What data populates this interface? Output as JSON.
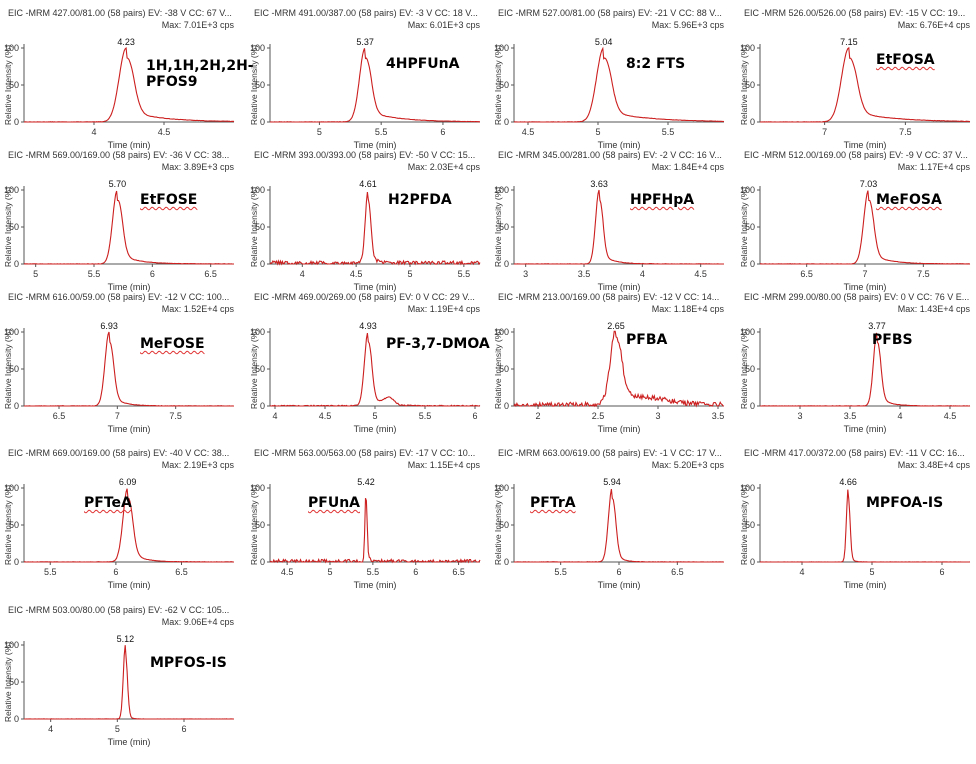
{
  "colors": {
    "trace": "#cc1f1f",
    "axis": "#555555",
    "text": "#333333"
  },
  "chart_data": [
    {
      "type": "line",
      "header": "EIC -MRM 427.00/81.00 (58 pairs) EV: -38 V CC: 67 V...",
      "max": "Max: 7.01E+3 cps",
      "compound": "1H,1H,2H,2H-\nPFOS9",
      "squiggle": false,
      "xlabel": "Time (min)",
      "ylabel": "Relative Intensity (%)",
      "xlim": [
        3.5,
        5.0
      ],
      "xticks": [
        "4",
        "4.5"
      ],
      "ylim": [
        0,
        100
      ],
      "yticks": [
        "0",
        "50",
        "100"
      ],
      "peak": 4.23,
      "peak_label": "4.23",
      "width": 0.05,
      "tail": 0.25,
      "noise": 0.5,
      "extra": []
    },
    {
      "type": "line",
      "header": "EIC -MRM 491.00/387.00 (58 pairs) EV: -3 V CC: 18 V...",
      "max": "Max: 6.01E+3 cps",
      "compound": "4HPFUnA",
      "squiggle": false,
      "xlabel": "Time (min)",
      "ylabel": "Relative Intensity (%)",
      "xlim": [
        4.6,
        6.3
      ],
      "xticks": [
        "5",
        "5.5",
        "6"
      ],
      "ylim": [
        0,
        100
      ],
      "yticks": [
        "0",
        "50",
        "100"
      ],
      "peak": 5.37,
      "peak_label": "5.37",
      "width": 0.045,
      "tail": 0.25,
      "noise": 0.5,
      "extra": []
    },
    {
      "type": "line",
      "header": "EIC -MRM 527.00/81.00 (58 pairs) EV: -21 V CC: 88 V...",
      "max": "Max: 5.96E+3 cps",
      "compound": "8:2 FTS",
      "squiggle": false,
      "xlabel": "Time (min)",
      "ylabel": "Relative Intensity (%)",
      "xlim": [
        4.4,
        5.9
      ],
      "xticks": [
        "4.5",
        "5",
        "5.5"
      ],
      "ylim": [
        0,
        100
      ],
      "yticks": [
        "0",
        "50",
        "100"
      ],
      "peak": 5.04,
      "peak_label": "5.04",
      "width": 0.05,
      "tail": 0.3,
      "noise": 0.5,
      "extra": []
    },
    {
      "type": "line",
      "header": "EIC -MRM 526.00/526.00 (58 pairs) EV: -15 V CC: 19...",
      "max": "Max: 6.76E+4 cps",
      "compound": "EtFOSA",
      "squiggle": true,
      "xlabel": "Time (min)",
      "ylabel": "Relative Intensity (%)",
      "xlim": [
        6.6,
        7.9
      ],
      "xticks": [
        "7",
        "7.5"
      ],
      "ylim": [
        0,
        100
      ],
      "yticks": [
        "0",
        "50",
        "100"
      ],
      "peak": 7.15,
      "peak_label": "7.15",
      "width": 0.045,
      "tail": 0.25,
      "noise": 0.5,
      "extra": []
    },
    {
      "type": "line",
      "header": "EIC -MRM 569.00/169.00 (58 pairs) EV: -36 V CC: 38...",
      "max": "Max: 3.89E+3 cps",
      "compound": "EtFOSE",
      "squiggle": true,
      "xlabel": "Time (min)",
      "ylabel": "Relative Intensity (%)",
      "xlim": [
        4.9,
        6.7
      ],
      "xticks": [
        "5",
        "5.5",
        "6",
        "6.5"
      ],
      "ylim": [
        0,
        100
      ],
      "yticks": [
        "0",
        "50",
        "100"
      ],
      "peak": 5.7,
      "peak_label": "5.70",
      "width": 0.04,
      "tail": 0.15,
      "noise": 0.5,
      "extra": []
    },
    {
      "type": "line",
      "header": "EIC -MRM 393.00/393.00 (58 pairs) EV: -50 V CC: 15...",
      "max": "Max: 2.03E+4 cps",
      "compound": "H2PFDA",
      "squiggle": false,
      "xlabel": "Time (min)",
      "ylabel": "Relative Intensity (%)",
      "xlim": [
        3.7,
        5.65
      ],
      "xticks": [
        "4",
        "4.5",
        "5",
        "5.5"
      ],
      "ylim": [
        0,
        100
      ],
      "yticks": [
        "0",
        "50",
        "100"
      ],
      "peak": 4.61,
      "peak_label": "4.61",
      "width": 0.025,
      "tail": 0.05,
      "noise": 6,
      "extra": []
    },
    {
      "type": "line",
      "header": "EIC -MRM 345.00/281.00 (58 pairs) EV: -2 V CC: 16 V...",
      "max": "Max: 1.84E+4 cps",
      "compound": "HPFHpA",
      "squiggle": true,
      "xlabel": "Time (min)",
      "ylabel": "Relative Intensity (%)",
      "xlim": [
        2.9,
        4.7
      ],
      "xticks": [
        "3",
        "3.5",
        "4",
        "4.5"
      ],
      "ylim": [
        0,
        100
      ],
      "yticks": [
        "0",
        "50",
        "100"
      ],
      "peak": 3.63,
      "peak_label": "3.63",
      "width": 0.03,
      "tail": 0.1,
      "noise": 0.5,
      "extra": []
    },
    {
      "type": "line",
      "header": "EIC -MRM 512.00/169.00 (58 pairs) EV: -9 V CC: 37 V...",
      "max": "Max: 1.17E+4 cps",
      "compound": "MeFOSA",
      "squiggle": true,
      "xlabel": "Time (min)",
      "ylabel": "Relative Intensity (%)",
      "xlim": [
        6.1,
        7.9
      ],
      "xticks": [
        "6.5",
        "7",
        "7.5"
      ],
      "ylim": [
        0,
        100
      ],
      "yticks": [
        "0",
        "50",
        "100"
      ],
      "peak": 7.03,
      "peak_label": "7.03",
      "width": 0.04,
      "tail": 0.15,
      "noise": 0.5,
      "extra": []
    },
    {
      "type": "line",
      "header": "EIC -MRM 616.00/59.00 (58 pairs) EV: -12 V CC: 100...",
      "max": "Max: 1.52E+4 cps",
      "compound": "MeFOSE",
      "squiggle": true,
      "xlabel": "Time (min)",
      "ylabel": "Relative Intensity (%)",
      "xlim": [
        6.2,
        8.0
      ],
      "xticks": [
        "6.5",
        "7",
        "7.5"
      ],
      "ylim": [
        0,
        100
      ],
      "yticks": [
        "0",
        "50",
        "100"
      ],
      "peak": 6.93,
      "peak_label": "6.93",
      "width": 0.035,
      "tail": 0.1,
      "noise": 0.5,
      "extra": []
    },
    {
      "type": "line",
      "header": "EIC -MRM 469.00/269.00 (58 pairs) EV: 0 V CC: 29 V...",
      "max": "Max: 1.19E+4 cps",
      "compound": "PF-3,7-DMOA",
      "squiggle": false,
      "xlabel": "Time (min)",
      "ylabel": "Relative Intensity (%)",
      "xlim": [
        3.95,
        6.05
      ],
      "xticks": [
        "4",
        "4.5",
        "5",
        "5.5",
        "6"
      ],
      "ylim": [
        0,
        100
      ],
      "yticks": [
        "0",
        "50",
        "100"
      ],
      "peak": 4.93,
      "peak_label": "4.93",
      "width": 0.035,
      "tail": 0.1,
      "noise": 1.5,
      "extra": [
        [
          5.14,
          10,
          0.05
        ]
      ]
    },
    {
      "type": "line",
      "header": "EIC -MRM 213.00/169.00 (58 pairs) EV: -12 V CC: 14...",
      "max": "Max: 1.18E+4 cps",
      "compound": "PFBA",
      "squiggle": false,
      "xlabel": "Time (min)",
      "ylabel": "Relative Intensity (%)",
      "xlim": [
        1.8,
        3.55
      ],
      "xticks": [
        "2",
        "2.5",
        "3",
        "3.5"
      ],
      "ylim": [
        0,
        100
      ],
      "yticks": [
        "0",
        "50",
        "100"
      ],
      "peak": 2.65,
      "peak_label": "2.65",
      "width": 0.045,
      "tail": 0.1,
      "noise": 7,
      "extra": [
        [
          2.9,
          10,
          0.2
        ]
      ]
    },
    {
      "type": "line",
      "header": "EIC -MRM 299.00/80.00 (58 pairs) EV: 0 V CC: 76 V E...",
      "max": "Max: 1.43E+4 cps",
      "compound": "PFBS",
      "squiggle": false,
      "xlabel": "Time (min)",
      "ylabel": "Relative Intensity (%)",
      "xlim": [
        2.6,
        4.7
      ],
      "xticks": [
        "3",
        "3.5",
        "4",
        "4.5"
      ],
      "ylim": [
        0,
        100
      ],
      "yticks": [
        "0",
        "50",
        "100"
      ],
      "peak": 3.77,
      "peak_label": "3.77",
      "width": 0.035,
      "tail": 0.1,
      "noise": 0.5,
      "extra": []
    },
    {
      "type": "line",
      "header": "EIC -MRM 669.00/169.00 (58 pairs) EV: -40 V CC: 38...",
      "max": "Max: 2.19E+3 cps",
      "compound": "PFTeA",
      "squiggle": true,
      "xlabel": "Time (min)",
      "ylabel": "Relative Intensity (%)",
      "xlim": [
        5.3,
        6.9
      ],
      "xticks": [
        "5.5",
        "6",
        "6.5"
      ],
      "ylim": [
        0,
        100
      ],
      "yticks": [
        "0",
        "50",
        "100"
      ],
      "peak": 6.09,
      "peak_label": "6.09",
      "width": 0.035,
      "tail": 0.1,
      "noise": 0.5,
      "extra": []
    },
    {
      "type": "line",
      "header": "EIC -MRM 563.00/563.00 (58 pairs) EV: -17 V CC: 10...",
      "max": "Max: 1.15E+4 cps",
      "compound": "PFUnA",
      "squiggle": true,
      "xlabel": "Time (min)",
      "ylabel": "Relative Intensity (%)",
      "xlim": [
        4.3,
        6.75
      ],
      "xticks": [
        "4.5",
        "5",
        "5.5",
        "6",
        "6.5"
      ],
      "ylim": [
        0,
        100
      ],
      "yticks": [
        "0",
        "50",
        "100"
      ],
      "peak": 5.42,
      "peak_label": "5.42",
      "width": 0.012,
      "tail": 0.03,
      "noise": 5,
      "extra": []
    },
    {
      "type": "line",
      "header": "EIC -MRM 663.00/619.00 (58 pairs) EV: -1 V CC: 17 V...",
      "max": "Max: 5.20E+3 cps",
      "compound": "PFTrA",
      "squiggle": true,
      "xlabel": "Time (min)",
      "ylabel": "Relative Intensity (%)",
      "xlim": [
        5.1,
        6.9
      ],
      "xticks": [
        "5.5",
        "6",
        "6.5"
      ],
      "ylim": [
        0,
        100
      ],
      "yticks": [
        "0",
        "50",
        "100"
      ],
      "peak": 5.94,
      "peak_label": "5.94",
      "width": 0.03,
      "tail": 0.06,
      "noise": 0.5,
      "extra": []
    },
    {
      "type": "line",
      "header": "EIC -MRM 417.00/372.00 (58 pairs) EV: -11 V CC: 16...",
      "max": "Max: 3.48E+4 cps",
      "compound": "MPFOA-IS",
      "squiggle": false,
      "xlabel": "Time (min)",
      "ylabel": "Relative Intensity (%)",
      "xlim": [
        3.4,
        6.4
      ],
      "xticks": [
        "4",
        "5",
        "6"
      ],
      "ylim": [
        0,
        100
      ],
      "yticks": [
        "0",
        "50",
        "100"
      ],
      "peak": 4.66,
      "peak_label": "4.66",
      "width": 0.025,
      "tail": 0.04,
      "noise": 0.3,
      "extra": []
    },
    {
      "type": "line",
      "header": "EIC -MRM 503.00/80.00 (58 pairs) EV: -62 V CC: 105...",
      "max": "Max: 9.06E+4 cps",
      "compound": "MPFOS-IS",
      "squiggle": false,
      "xlabel": "Time (min)",
      "ylabel": "Relative Intensity (%)",
      "xlim": [
        3.6,
        6.75
      ],
      "xticks": [
        "4",
        "5",
        "6"
      ],
      "ylim": [
        0,
        100
      ],
      "yticks": [
        "0",
        "50",
        "100"
      ],
      "peak": 5.12,
      "peak_label": "5.12",
      "width": 0.03,
      "tail": 0.04,
      "noise": 0.3,
      "extra": []
    }
  ]
}
